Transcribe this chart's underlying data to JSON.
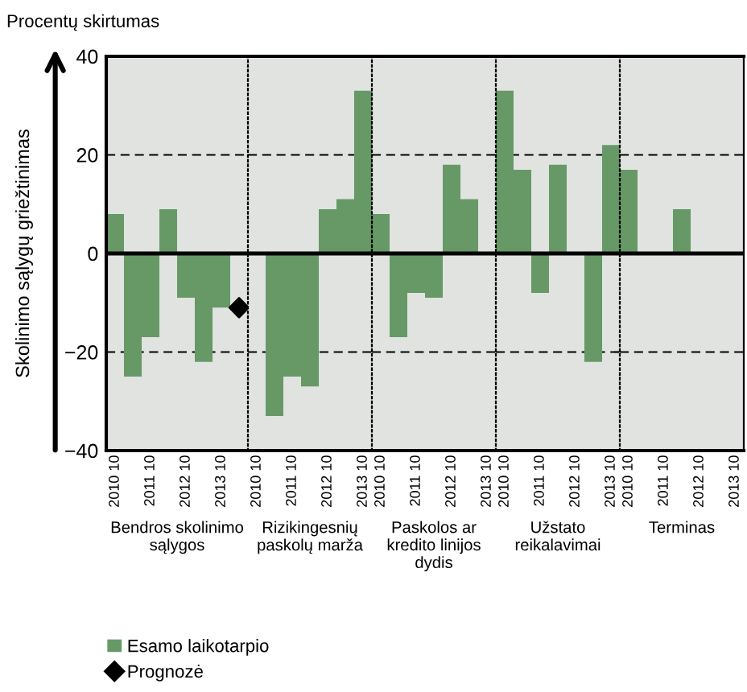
{
  "chart_data": [
    {
      "type": "bar",
      "title": "Procentų skirtumas",
      "ylabel": "Skolinimo sąlygų griežtinimas",
      "xlabel": "Bendros skolinimo\nsąlygos",
      "categories": [
        "2010 10",
        null,
        "2011 10",
        null,
        "2012 10",
        null,
        "2013 10",
        null
      ],
      "series": [
        {
          "name": "Esamo laikotarpio",
          "color": "#669966",
          "values": [
            8,
            -25,
            -17,
            9,
            -9,
            -22,
            -11,
            null
          ]
        },
        {
          "name": "Prognozė",
          "type": "scatter",
          "marker": "diamond",
          "color": "#000000",
          "values": [
            null,
            null,
            null,
            null,
            null,
            null,
            null,
            -11
          ]
        }
      ],
      "ylim": [
        -40,
        40
      ],
      "yticks": [
        -40,
        -20,
        0,
        20,
        40
      ],
      "grid": "y",
      "legend": "bottom",
      "ref_lines": [
        {
          "axis": "y",
          "value": 0,
          "color": "#000000"
        }
      ]
    },
    {
      "type": "bar",
      "xlabel": "Rizikingesnių\npaskolų marža",
      "categories": [
        "2010 10",
        null,
        "2011 10",
        null,
        "2012 10",
        null,
        "2013 10"
      ],
      "series": [
        {
          "color": "#669966",
          "values": [
            0,
            -33,
            -25,
            -27,
            9,
            11,
            33
          ]
        }
      ],
      "ylim": [
        -40,
        40
      ],
      "yticks": [
        -40,
        -20,
        0,
        20,
        40
      ],
      "grid": "y",
      "tick_labels": "x",
      "ref_lines": [
        {
          "axis": "y",
          "value": 0,
          "color": "#000000"
        }
      ]
    },
    {
      "type": "bar",
      "xlabel": "Paskolos ar\nkredito linijos\ndydis",
      "categories": [
        "2010 10",
        null,
        "2011 10",
        null,
        "2012 10",
        null,
        "2013 10"
      ],
      "series": [
        {
          "color": "#669966",
          "values": [
            8,
            -17,
            -8,
            -9,
            18,
            11,
            0
          ]
        }
      ],
      "ylim": [
        -40,
        40
      ],
      "yticks": [
        -40,
        -20,
        0,
        20,
        40
      ],
      "grid": "y",
      "tick_labels": "x",
      "ref_lines": [
        {
          "axis": "y",
          "value": 0,
          "color": "#000000"
        }
      ]
    },
    {
      "type": "bar",
      "xlabel": "Užstato\nreikalavimai",
      "categories": [
        "2010 10",
        null,
        "2011 10",
        null,
        "2012 10",
        null,
        "2013 10"
      ],
      "series": [
        {
          "color": "#669966",
          "values": [
            33,
            17,
            -8,
            18,
            0,
            -22,
            22
          ]
        }
      ],
      "ylim": [
        -40,
        40
      ],
      "yticks": [
        -40,
        -20,
        0,
        20,
        40
      ],
      "grid": "y",
      "tick_labels": "x",
      "ref_lines": [
        {
          "axis": "y",
          "value": 0,
          "color": "#000000"
        }
      ]
    },
    {
      "type": "bar",
      "xlabel": "Terminas",
      "categories": [
        "2010 10",
        null,
        "2011 10",
        null,
        "2012 10",
        null,
        "2013 10"
      ],
      "series": [
        {
          "color": "#669966",
          "values": [
            17,
            0,
            0,
            9,
            0,
            0,
            0
          ]
        }
      ],
      "ylim": [
        -40,
        40
      ],
      "yticks": [
        -40,
        -20,
        0,
        20,
        40
      ],
      "grid": "y",
      "tick_labels": "x",
      "ref_lines": [
        {
          "axis": "y",
          "value": 0,
          "color": "#000000"
        }
      ]
    }
  ]
}
